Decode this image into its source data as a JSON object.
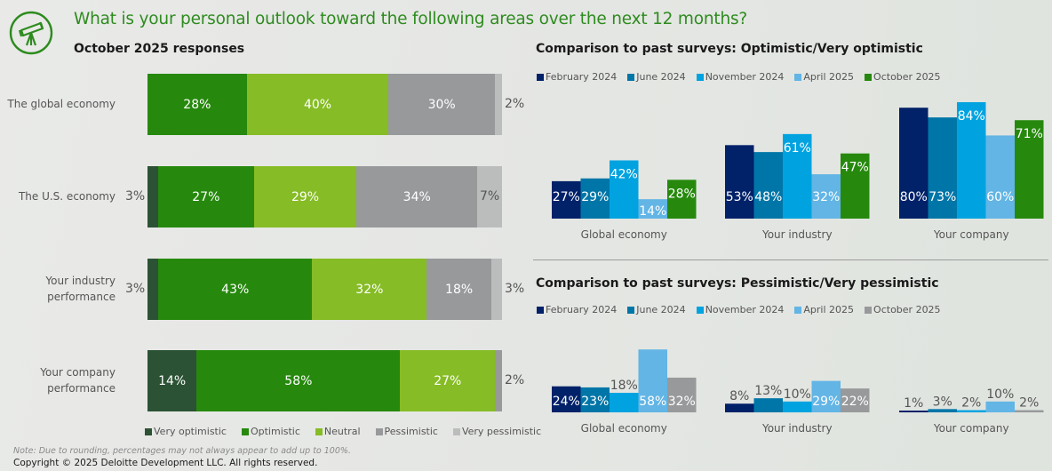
{
  "header": {
    "icon": "telescope-icon",
    "title": "What is your personal outlook toward the following areas over the next 12 months?",
    "subtitle": "October 2025 responses"
  },
  "colors": {
    "very_optimistic": "#2b5234",
    "optimistic": "#26890d",
    "neutral": "#86bc25",
    "pessimistic": "#97999b",
    "very_pessimistic": "#bbbcbc",
    "feb2024": "#012169",
    "jun2024": "#0076a8",
    "nov2024": "#00a3e0",
    "apr2025": "#62b5e5",
    "oct2025_opt": "#26890d",
    "oct2025_pess": "#97999b"
  },
  "chart_data": [
    {
      "type": "bar",
      "orientation": "horizontal-stacked-100",
      "title": "October 2025 responses",
      "categories": [
        "The global economy",
        "The U.S. economy",
        "Your industry performance",
        "Your company performance"
      ],
      "series": [
        {
          "name": "Very optimistic",
          "values": [
            0,
            3,
            3,
            14
          ]
        },
        {
          "name": "Optimistic",
          "values": [
            28,
            27,
            43,
            58
          ]
        },
        {
          "name": "Neutral",
          "values": [
            40,
            29,
            32,
            27
          ]
        },
        {
          "name": "Pessimistic",
          "values": [
            30,
            34,
            18,
            2
          ]
        },
        {
          "name": "Very pessimistic",
          "values": [
            2,
            7,
            3,
            0
          ]
        }
      ],
      "labels": [
        {
          "left": "",
          "inside": [
            "28%",
            "40%",
            "30%"
          ],
          "right": "2%"
        },
        {
          "left": "3%",
          "inside": [
            "27%",
            "29%",
            "34%"
          ],
          "right": "7%"
        },
        {
          "left": "3%",
          "inside": [
            "43%",
            "32%",
            "18%"
          ],
          "right": "3%"
        },
        {
          "left": "",
          "inside": [
            "14%",
            "58%",
            "27%"
          ],
          "right": "2%"
        }
      ],
      "legend": [
        "Very optimistic",
        "Optimistic",
        "Neutral",
        "Pessimistic",
        "Very pessimistic"
      ],
      "legend_position": "bottom",
      "note": "Note: Due to rounding, percentages may not always appear to add up to 100%."
    },
    {
      "type": "bar",
      "title": "Comparison to past surveys: Optimistic/Very optimistic",
      "categories": [
        "Global economy",
        "Your industry",
        "Your company"
      ],
      "series": [
        {
          "name": "February 2024",
          "values": [
            27,
            53,
            80
          ]
        },
        {
          "name": "June 2024",
          "values": [
            29,
            48,
            73
          ]
        },
        {
          "name": "November 2024",
          "values": [
            42,
            61,
            84
          ]
        },
        {
          "name": "April 2025",
          "values": [
            14,
            32,
            60
          ]
        },
        {
          "name": "October 2025",
          "values": [
            28,
            47,
            71
          ]
        }
      ],
      "legend_position": "top-left",
      "grid": false,
      "ylim": [
        0,
        100
      ]
    },
    {
      "type": "bar",
      "title": "Comparison to past surveys: Pessimistic/Very pessimistic",
      "categories": [
        "Global economy",
        "Your industry",
        "Your company"
      ],
      "series": [
        {
          "name": "February 2024",
          "values": [
            24,
            8,
            1
          ]
        },
        {
          "name": "June 2024",
          "values": [
            23,
            13,
            3
          ]
        },
        {
          "name": "November 2024",
          "values": [
            18,
            10,
            2
          ]
        },
        {
          "name": "April 2025",
          "values": [
            58,
            29,
            10
          ]
        },
        {
          "name": "October 2025",
          "values": [
            32,
            22,
            2
          ]
        }
      ],
      "legend_position": "top-left",
      "grid": false,
      "ylim": [
        0,
        100
      ]
    }
  ],
  "footer": {
    "copyright": "Copyright © 2025 Deloitte Development LLC. All rights reserved."
  }
}
